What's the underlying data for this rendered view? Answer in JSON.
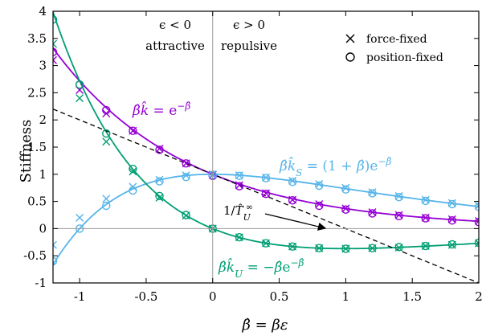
{
  "chart_data": {
    "type": "line",
    "title": "",
    "xlabel": "β̂ = βε",
    "ylabel": "Stiffness",
    "xlim": [
      -1.2,
      2
    ],
    "ylim": [
      -1,
      4
    ],
    "xticks": [
      -1,
      -0.5,
      0,
      0.5,
      1,
      1.5,
      2
    ],
    "xtick_labels": [
      "-1",
      "-0.5",
      "0",
      "0.5",
      "1",
      "1.5",
      "2"
    ],
    "yticks": [
      -1,
      -0.5,
      0,
      0.5,
      1,
      1.5,
      2,
      2.5,
      3,
      3.5,
      4
    ],
    "ytick_labels": [
      "-1",
      "-0.5",
      "0",
      "0.5",
      "1",
      "1.5",
      "2",
      "2.5",
      "3",
      "3.5",
      "4"
    ],
    "grid": false,
    "legend_position": "top-right",
    "legend": [
      {
        "symbol": "cross",
        "label": "force-fixed"
      },
      {
        "symbol": "circle",
        "label": "position-fixed"
      }
    ],
    "region_labels": [
      {
        "line1": "ϵ < 0",
        "line2": "attractive"
      },
      {
        "line1": "ϵ > 0",
        "line2": "repulsive"
      }
    ],
    "reference_lines": {
      "x": 0,
      "y": 0
    },
    "series": [
      {
        "name": "β̂k̂ = e^{-β̂}",
        "color": "#9400d3",
        "expr": "exp(-b)",
        "markers_x": [
          -1.2,
          -1,
          -0.8,
          -0.6,
          -0.4,
          -0.2,
          0,
          0.2,
          0.4,
          0.6,
          0.8,
          1,
          1.2,
          1.4,
          1.6,
          1.8,
          2
        ],
        "force_fixed": [
          3.1,
          2.55,
          2.12,
          1.8,
          1.47,
          1.2,
          0.99,
          0.8,
          0.65,
          0.53,
          0.45,
          0.37,
          0.3,
          0.25,
          0.2,
          0.17,
          0.14
        ],
        "position_fixed": [
          3.25,
          2.65,
          2.18,
          1.8,
          1.45,
          1.2,
          0.97,
          0.78,
          0.64,
          0.52,
          0.42,
          0.35,
          0.28,
          0.23,
          0.19,
          0.15,
          0.12
        ]
      },
      {
        "name": "β̂k̂_S = (1+β̂)e^{-β̂}",
        "color": "#56b4e9",
        "expr": "(1+b)*exp(-b)",
        "markers_x": [
          -1.2,
          -1,
          -0.8,
          -0.6,
          -0.4,
          -0.2,
          0,
          0.2,
          0.4,
          0.6,
          0.8,
          1,
          1.2,
          1.4,
          1.6,
          1.8,
          2
        ],
        "force_fixed": [
          -0.3,
          0.2,
          0.55,
          0.77,
          0.9,
          0.98,
          1.0,
          0.98,
          0.94,
          0.88,
          0.82,
          0.75,
          0.67,
          0.6,
          0.53,
          0.47,
          0.42
        ],
        "position_fixed": [
          -0.6,
          0.0,
          0.42,
          0.7,
          0.87,
          0.95,
          0.99,
          0.97,
          0.93,
          0.86,
          0.79,
          0.72,
          0.65,
          0.58,
          0.51,
          0.45,
          0.4
        ]
      },
      {
        "name": "β̂k̂_U = −β̂e^{-β̂}",
        "color": "#009e73",
        "expr": "-b*exp(-b)",
        "markers_x": [
          -1.2,
          -1,
          -0.8,
          -0.6,
          -0.4,
          -0.2,
          0,
          0.2,
          0.4,
          0.6,
          0.8,
          1,
          1.2,
          1.4,
          1.6,
          1.8,
          2
        ],
        "force_fixed": [
          3.4,
          2.4,
          1.6,
          1.05,
          0.57,
          0.24,
          0.0,
          -0.16,
          -0.27,
          -0.33,
          -0.36,
          -0.37,
          -0.36,
          -0.35,
          -0.32,
          -0.3,
          -0.27
        ],
        "position_fixed": [
          3.85,
          2.65,
          1.75,
          1.1,
          0.6,
          0.25,
          0.0,
          -0.16,
          -0.27,
          -0.33,
          -0.36,
          -0.37,
          -0.36,
          -0.34,
          -0.32,
          -0.29,
          -0.26
        ]
      },
      {
        "name": "1/T̂_U^∞",
        "color": "#000000",
        "dashed": true,
        "expr": "1-b",
        "label_arrow_target": [
          1.0,
          0.0
        ]
      }
    ]
  }
}
